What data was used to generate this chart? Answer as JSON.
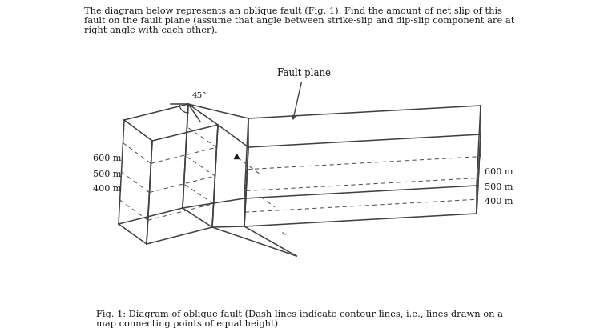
{
  "title_text": "The diagram below represents an oblique fault (Fig. 1). Find the amount of net slip of this\nfault on the fault plane (assume that angle between strike-slip and dip-slip component are at\nright angle with each other).",
  "fault_plane_label": "Fault plane",
  "angle_label": "45°",
  "left_labels": [
    [
      "600 m",
      152,
      198
    ],
    [
      "500 m",
      152,
      218
    ],
    [
      "400 m",
      152,
      236
    ]
  ],
  "right_labels": [
    [
      "600 m",
      605,
      215
    ],
    [
      "500 m",
      605,
      234
    ],
    [
      "400 m",
      605,
      252
    ]
  ],
  "fig_caption": "Fig. 1: Diagram of oblique fault (Dash-lines indicate contour lines, i.e., lines drawn on a\nmap connecting points of equal height)",
  "bg_color": "#ffffff",
  "line_color": "#404040",
  "dash_color": "#505050",
  "text_color": "#1a1a1a"
}
